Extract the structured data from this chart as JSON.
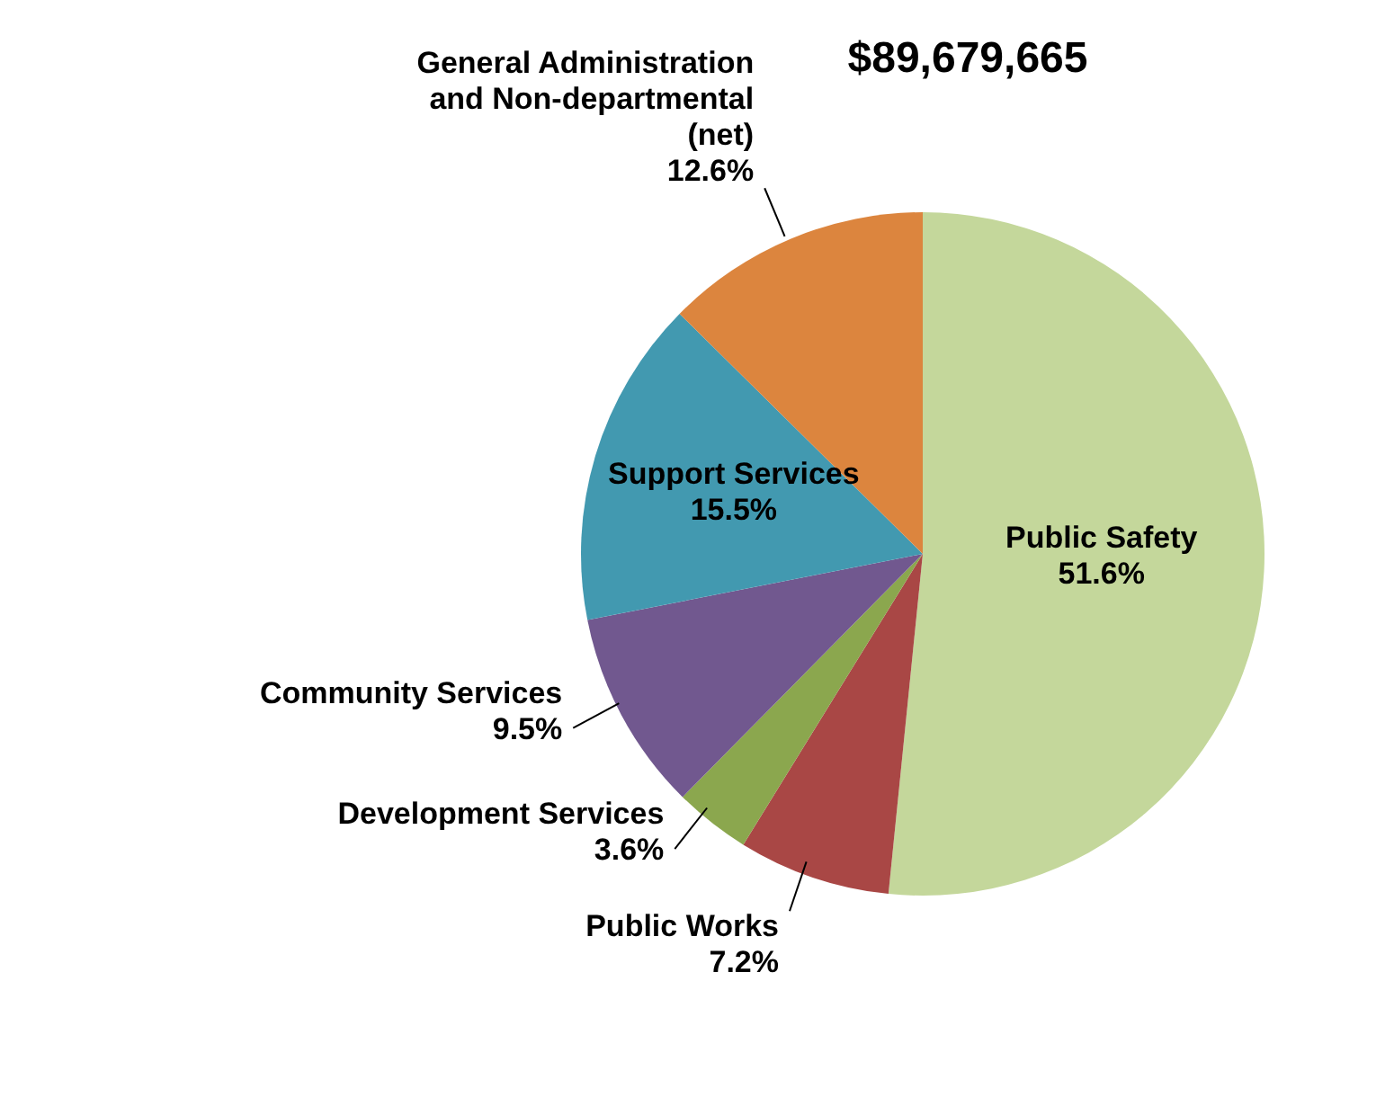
{
  "chart_data": {
    "type": "pie",
    "title": "$89,679,665",
    "categories": [
      "Public Safety",
      "Public Works",
      "Development Services",
      "Community Services",
      "Support Services",
      "General Administration and Non-departmental (net)"
    ],
    "values": [
      51.6,
      7.2,
      3.6,
      9.5,
      15.5,
      12.6
    ],
    "colors": [
      "#c4d79b",
      "#a94745",
      "#8ba74e",
      "#71588f",
      "#4299b0",
      "#dc853e"
    ],
    "value_labels": [
      "51.6%",
      "7.2%",
      "3.6%",
      "9.5%",
      "15.5%",
      "12.6%"
    ],
    "legend": false
  }
}
